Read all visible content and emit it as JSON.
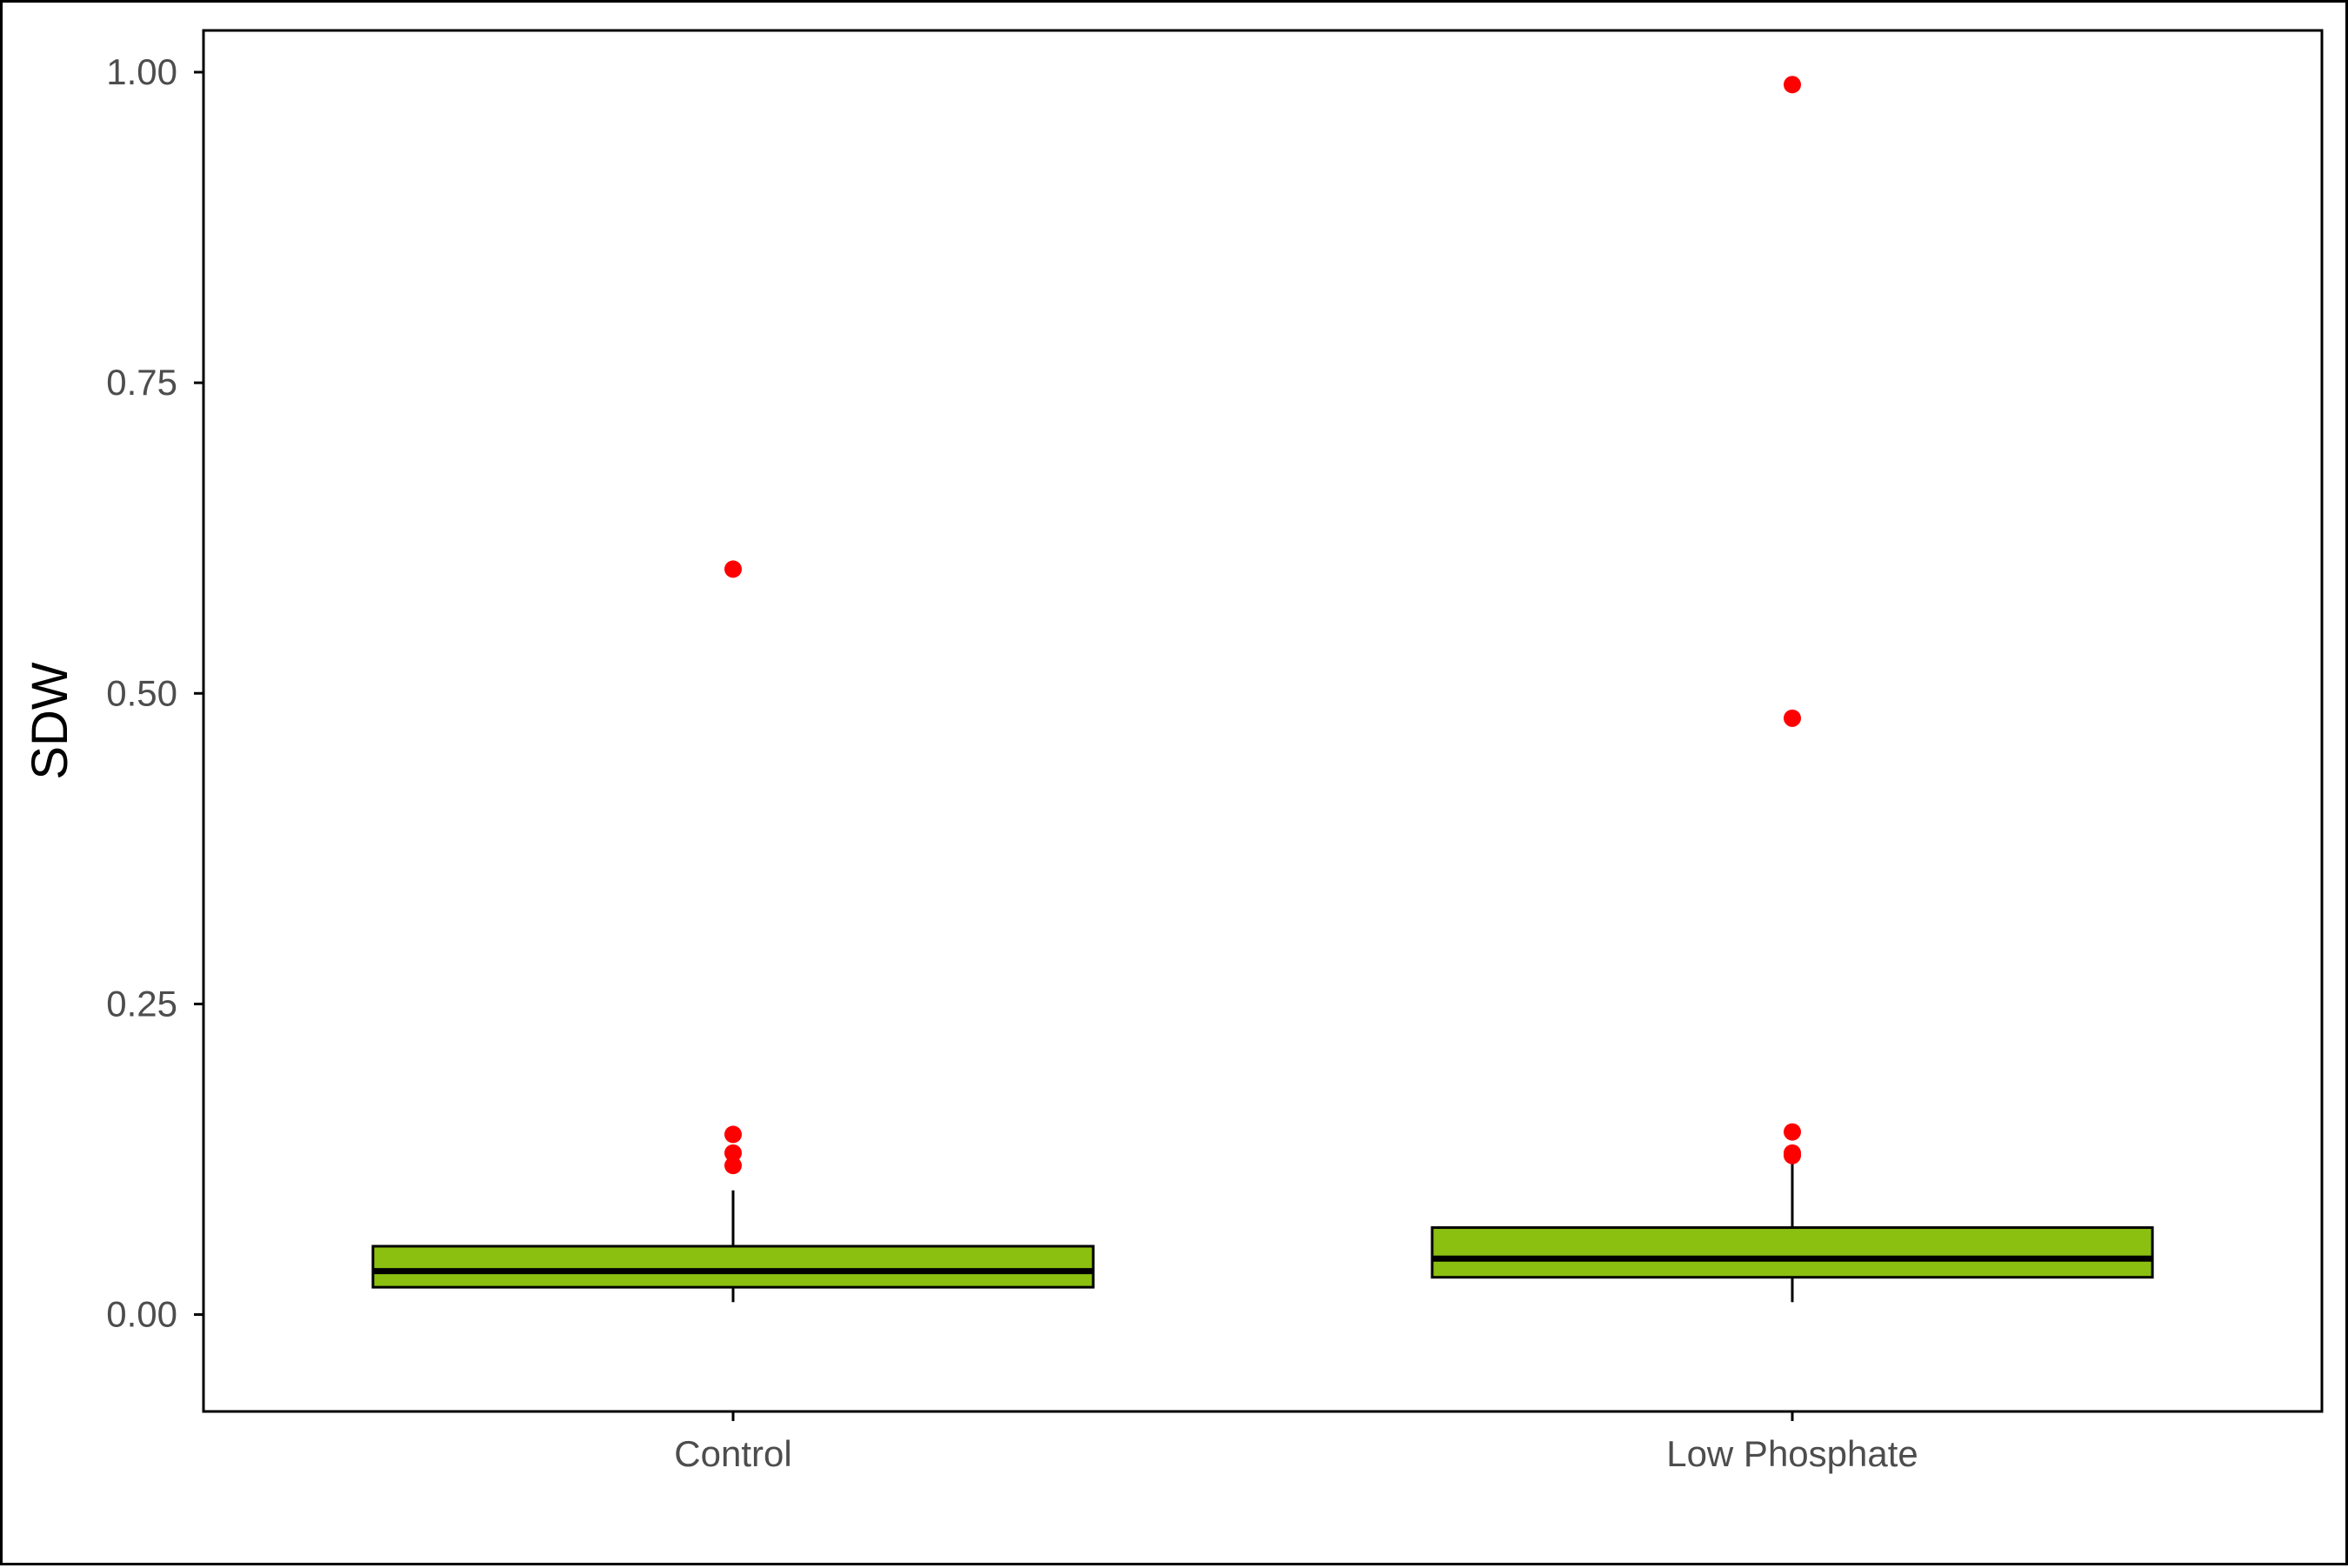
{
  "chart_data": {
    "type": "box",
    "categories": [
      "Control",
      "Low Phosphate"
    ],
    "ylabel": "SDW",
    "xlabel": "",
    "title": "",
    "ylim": [
      -0.078,
      1.0336
    ],
    "y_ticks": [
      0.0,
      0.25,
      0.5,
      0.75,
      1.0
    ],
    "y_tick_labels": [
      "0.00",
      "0.25",
      "0.50",
      "0.75",
      "1.00"
    ],
    "grid": false,
    "legend": "none",
    "colors": {
      "box_fill": "#8bc011",
      "outlier": "#ff0000",
      "line": "#000000"
    },
    "boxes": [
      {
        "category": "Control",
        "whisker_low": 0.01,
        "q1": 0.022,
        "median": 0.035,
        "q3": 0.055,
        "whisker_high": 0.1,
        "outliers": [
          0.6,
          0.145,
          0.13,
          0.12
        ]
      },
      {
        "category": "Low Phosphate",
        "whisker_low": 0.01,
        "q1": 0.03,
        "median": 0.045,
        "q3": 0.07,
        "whisker_high": 0.13,
        "outliers": [
          0.99,
          0.48,
          0.147,
          0.13,
          0.128
        ]
      }
    ]
  }
}
